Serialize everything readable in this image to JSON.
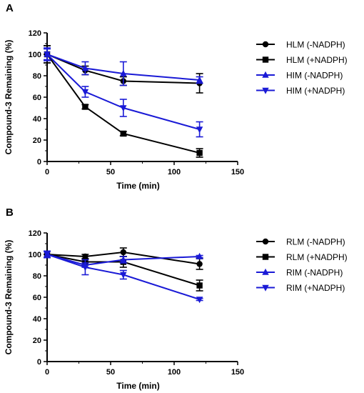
{
  "colors": {
    "black": "#000000",
    "blue": "#1a1ad6"
  },
  "chart_data": [
    {
      "panel": "A",
      "type": "line",
      "xlabel": "Time (min)",
      "ylabel": "Compound-3 Remaining (%)",
      "xlim": [
        0,
        150
      ],
      "ylim": [
        0,
        120
      ],
      "xticks": [
        0,
        50,
        100,
        150
      ],
      "yticks": [
        0,
        20,
        40,
        60,
        80,
        100,
        120
      ],
      "grid": false,
      "legend_position": "right",
      "series": [
        {
          "name": "HLM (-NADPH)",
          "marker": "circle",
          "color": "#000000",
          "x": [
            0,
            30,
            60,
            120
          ],
          "values": [
            100,
            85,
            75,
            73
          ],
          "error": [
            8,
            4,
            4,
            9
          ]
        },
        {
          "name": "HLM (+NADPH)",
          "marker": "square",
          "color": "#000000",
          "x": [
            0,
            30,
            60,
            120
          ],
          "values": [
            100,
            51,
            26,
            8
          ],
          "error": [
            8,
            2,
            2,
            4
          ]
        },
        {
          "name": "HIM (-NADPH)",
          "marker": "triangle-up",
          "color": "#1a1ad6",
          "x": [
            0,
            30,
            60,
            120
          ],
          "values": [
            100,
            87,
            82,
            76
          ],
          "error": [
            6,
            6,
            11,
            3
          ]
        },
        {
          "name": "HIM (+NADPH)",
          "marker": "triangle-down",
          "color": "#1a1ad6",
          "x": [
            0,
            30,
            60,
            120
          ],
          "values": [
            100,
            65,
            50,
            30
          ],
          "error": [
            5,
            5,
            8,
            7
          ]
        }
      ]
    },
    {
      "panel": "B",
      "type": "line",
      "xlabel": "Time (min)",
      "ylabel": "Compound-3 Remaining (%)",
      "xlim": [
        0,
        150
      ],
      "ylim": [
        0,
        120
      ],
      "xticks": [
        0,
        50,
        100,
        150
      ],
      "yticks": [
        0,
        20,
        40,
        60,
        80,
        100,
        120
      ],
      "grid": false,
      "legend_position": "right",
      "series": [
        {
          "name": "RLM (-NADPH)",
          "marker": "circle",
          "color": "#000000",
          "x": [
            0,
            30,
            60,
            120
          ],
          "values": [
            100,
            98,
            102,
            91
          ],
          "error": [
            3,
            2,
            4,
            5
          ]
        },
        {
          "name": "RLM (+NADPH)",
          "marker": "square",
          "color": "#000000",
          "x": [
            0,
            30,
            60,
            120
          ],
          "values": [
            100,
            93,
            93,
            71
          ],
          "error": [
            3,
            3,
            5,
            5
          ]
        },
        {
          "name": "RIM (-NADPH)",
          "marker": "triangle-up",
          "color": "#1a1ad6",
          "x": [
            0,
            30,
            60,
            120
          ],
          "values": [
            100,
            90,
            95,
            98
          ],
          "error": [
            3,
            2,
            3,
            1
          ]
        },
        {
          "name": "RIM (+NADPH)",
          "marker": "triangle-down",
          "color": "#1a1ad6",
          "x": [
            0,
            30,
            60,
            120
          ],
          "values": [
            100,
            88,
            81,
            58
          ],
          "error": [
            3,
            7,
            4,
            1
          ]
        }
      ]
    }
  ]
}
